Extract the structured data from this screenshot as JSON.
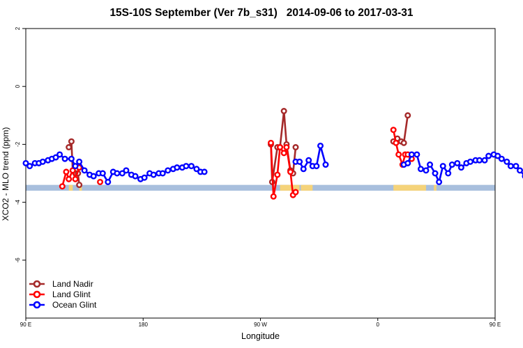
{
  "chart_data": {
    "type": "line",
    "title": "15S-10S September (Ver 7b_s31)   2014-09-06 to 2017-03-31",
    "xlabel": "Longitude",
    "ylabel": "XCO2 - MLO trend (ppm)",
    "xlim": [
      90,
      450
    ],
    "ylim": [
      -8,
      2
    ],
    "x_ticks": [
      {
        "value": 90,
        "label": "90 E"
      },
      {
        "value": 180,
        "label": "180"
      },
      {
        "value": 270,
        "label": "90 W"
      },
      {
        "value": 360,
        "label": "0"
      },
      {
        "value": 450,
        "label": "90 E"
      },
      {
        "value": 540,
        "label": "180"
      }
    ],
    "y_ticks": [
      {
        "value": 2,
        "label": "2"
      },
      {
        "value": 0,
        "label": "0"
      },
      {
        "value": -2,
        "label": "-2"
      },
      {
        "value": -4,
        "label": "-4"
      },
      {
        "value": -6,
        "label": "-6"
      }
    ],
    "grid": false,
    "legend_position": "bottom-left",
    "land_band": {
      "y_top": -3.4,
      "y_bottom": -3.6,
      "land_color": "#f5d37a",
      "ocean_color": "#a8bfdd",
      "land_ranges": [
        [
          123,
          126
        ],
        [
          131,
          133
        ],
        [
          285,
          300
        ],
        [
          301,
          310
        ],
        [
          372,
          397
        ],
        [
          403,
          405
        ],
        [
          492,
          495
        ],
        [
          501,
          503
        ]
      ]
    },
    "series": [
      {
        "name": "Land Nadir",
        "color": "#a52a2a",
        "segments": [
          [
            [
              123,
              -2.1
            ],
            [
              125,
              -1.9
            ],
            [
              126,
              -2.9
            ],
            [
              128,
              -3.0
            ],
            [
              130,
              -3.0
            ],
            [
              131,
              -3.4
            ]
          ],
          [
            [
              278,
              -2.0
            ],
            [
              279,
              -3.3
            ],
            [
              283,
              -2.1
            ],
            [
              285,
              -2.1
            ],
            [
              288,
              -0.85
            ],
            [
              290,
              -2.0
            ],
            [
              293,
              -2.9
            ],
            [
              295,
              -3.0
            ],
            [
              297,
              -2.1
            ]
          ],
          [
            [
              372,
              -1.9
            ],
            [
              375,
              -1.8
            ],
            [
              378,
              -1.9
            ],
            [
              380,
              -1.95
            ],
            [
              383,
              -1.0
            ]
          ],
          [
            [
              483,
              -2.1
            ],
            [
              485,
              -1.9
            ],
            [
              488,
              -2.9
            ],
            [
              490,
              -2.9
            ],
            [
              492,
              -3.0
            ],
            [
              493,
              -3.4
            ]
          ]
        ]
      },
      {
        "name": "Land Glint",
        "color": "#ff0000",
        "segments": [
          [
            [
              118,
              -3.45
            ],
            [
              121,
              -2.95
            ],
            [
              123,
              -3.2
            ],
            [
              126,
              -2.9
            ],
            [
              128,
              -3.2
            ],
            [
              131,
              -2.8
            ]
          ],
          [
            [
              147,
              -3.3
            ]
          ],
          [
            [
              278,
              -1.95
            ],
            [
              280,
              -3.8
            ],
            [
              283,
              -3.05
            ],
            [
              285,
              -2.1
            ],
            [
              288,
              -2.3
            ],
            [
              290,
              -2.1
            ],
            [
              293,
              -2.95
            ],
            [
              295,
              -3.75
            ],
            [
              297,
              -3.65
            ]
          ],
          [
            [
              372,
              -1.5
            ],
            [
              374,
              -1.95
            ],
            [
              376,
              -2.35
            ],
            [
              379,
              -2.7
            ],
            [
              381,
              -2.35
            ],
            [
              383,
              -2.35
            ],
            [
              386,
              -2.5
            ]
          ],
          [
            [
              480,
              -3.45
            ],
            [
              483,
              -2.95
            ],
            [
              485,
              -3.2
            ],
            [
              488,
              -2.9
            ],
            [
              490,
              -3.2
            ],
            [
              493,
              -2.8
            ]
          ]
        ]
      },
      {
        "name": "Ocean Glint",
        "color": "#0000ff",
        "segments": [
          [
            [
              90,
              -2.65
            ],
            [
              93,
              -2.75
            ],
            [
              97,
              -2.65
            ],
            [
              100,
              -2.65
            ],
            [
              103,
              -2.6
            ],
            [
              107,
              -2.55
            ],
            [
              110,
              -2.5
            ],
            [
              113,
              -2.45
            ],
            [
              116,
              -2.35
            ],
            [
              120,
              -2.5
            ],
            [
              125,
              -2.5
            ],
            [
              128,
              -2.75
            ],
            [
              131,
              -2.6
            ],
            [
              135,
              -2.9
            ],
            [
              139,
              -3.05
            ],
            [
              142,
              -3.1
            ],
            [
              146,
              -3.0
            ],
            [
              149,
              -3.0
            ],
            [
              153,
              -3.3
            ],
            [
              157,
              -2.95
            ],
            [
              160,
              -3.0
            ],
            [
              164,
              -3.0
            ],
            [
              167,
              -2.9
            ],
            [
              171,
              -3.05
            ],
            [
              174,
              -3.1
            ],
            [
              178,
              -3.2
            ],
            [
              181,
              -3.15
            ],
            [
              185,
              -3.0
            ],
            [
              188,
              -3.05
            ],
            [
              192,
              -3.0
            ],
            [
              195,
              -3.0
            ],
            [
              199,
              -2.9
            ],
            [
              203,
              -2.85
            ],
            [
              206,
              -2.8
            ],
            [
              210,
              -2.8
            ],
            [
              213,
              -2.75
            ],
            [
              217,
              -2.75
            ],
            [
              221,
              -2.85
            ],
            [
              224,
              -2.95
            ],
            [
              227,
              -2.95
            ]
          ],
          [
            [
              297,
              -2.6
            ],
            [
              300,
              -2.6
            ],
            [
              303,
              -2.85
            ],
            [
              307,
              -2.55
            ],
            [
              310,
              -2.75
            ],
            [
              313,
              -2.75
            ],
            [
              316,
              -2.05
            ],
            [
              320,
              -2.7
            ]
          ],
          [
            [
              380,
              -2.7
            ],
            [
              383,
              -2.65
            ],
            [
              386,
              -2.35
            ],
            [
              390,
              -2.35
            ],
            [
              393,
              -2.85
            ],
            [
              397,
              -2.9
            ],
            [
              400,
              -2.7
            ],
            [
              404,
              -3.0
            ],
            [
              407,
              -3.3
            ],
            [
              410,
              -2.75
            ],
            [
              414,
              -3.0
            ],
            [
              417,
              -2.7
            ],
            [
              421,
              -2.65
            ],
            [
              424,
              -2.8
            ],
            [
              428,
              -2.65
            ],
            [
              431,
              -2.6
            ],
            [
              435,
              -2.55
            ],
            [
              438,
              -2.55
            ],
            [
              442,
              -2.55
            ],
            [
              445,
              -2.4
            ],
            [
              449,
              -2.35
            ],
            [
              452,
              -2.4
            ],
            [
              455,
              -2.5
            ],
            [
              459,
              -2.6
            ],
            [
              462,
              -2.75
            ],
            [
              466,
              -2.75
            ],
            [
              469,
              -2.9
            ],
            [
              473,
              -3.1
            ],
            [
              476,
              -3.15
            ],
            [
              480,
              -3.05
            ],
            [
              483,
              -3.05
            ],
            [
              486,
              -3.3
            ]
          ]
        ]
      }
    ]
  }
}
